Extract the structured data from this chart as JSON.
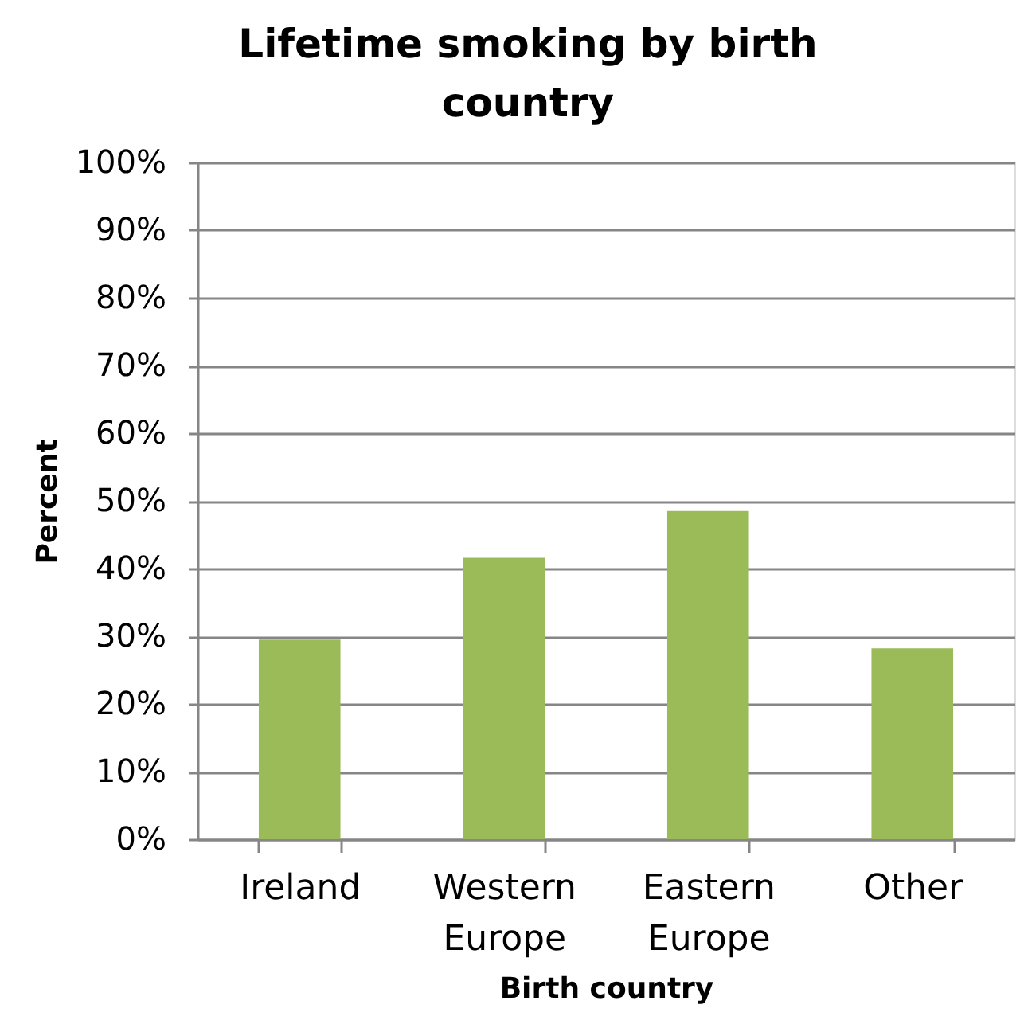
{
  "chart_data": {
    "type": "bar",
    "title": "Lifetime smoking by birth country",
    "xlabel": "Birth country",
    "ylabel": "Percent",
    "categories": [
      "Ireland",
      "Western Europe",
      "Eastern Europe",
      "Other"
    ],
    "values": [
      29.5,
      41.6,
      48.5,
      28.2
    ],
    "color": "#9bbb59",
    "ylim": [
      0,
      100
    ],
    "yticks": [
      {
        "value": 0,
        "label": "0%"
      },
      {
        "value": 10,
        "label": "10%"
      },
      {
        "value": 20,
        "label": "20%"
      },
      {
        "value": 30,
        "label": "30%"
      },
      {
        "value": 40,
        "label": "40%"
      },
      {
        "value": 50,
        "label": "50%"
      },
      {
        "value": 60,
        "label": "60%"
      },
      {
        "value": 70,
        "label": "70%"
      },
      {
        "value": 80,
        "label": "80%"
      },
      {
        "value": 90,
        "label": "90%"
      },
      {
        "value": 100,
        "label": "100%"
      }
    ],
    "grid": "y"
  }
}
